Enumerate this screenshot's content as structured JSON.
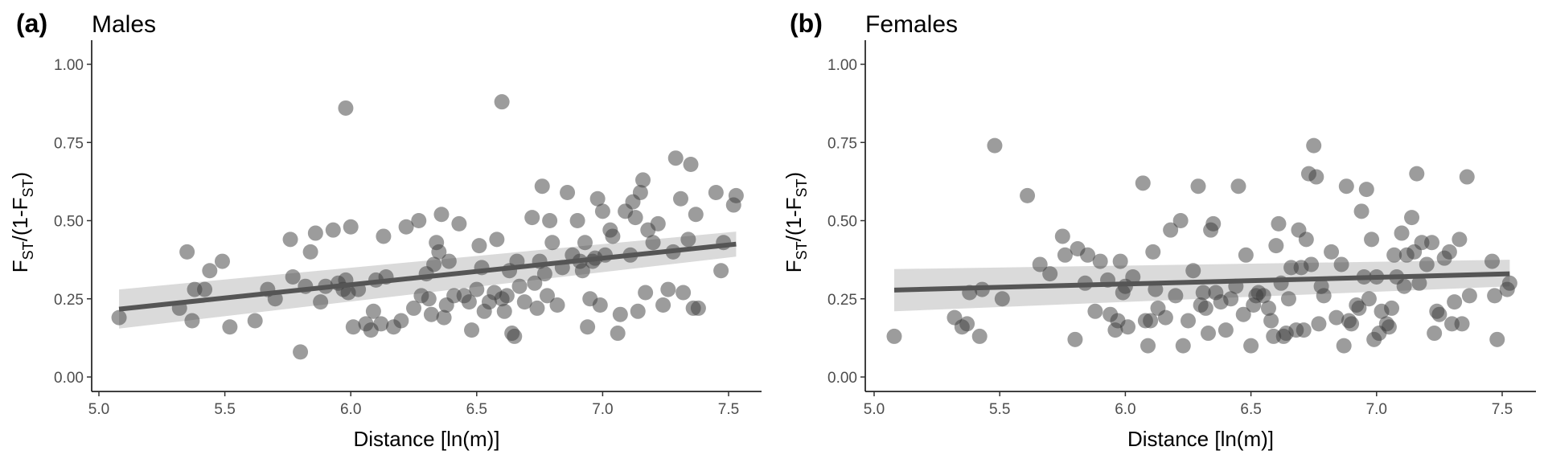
{
  "chart_data": [
    {
      "type": "scatter",
      "panel_label": "(a)",
      "title": "Males",
      "xlabel": "Distance [ln(m)]",
      "ylabel": {
        "main": "F",
        "sub": "ST",
        "mid": "/(1-F",
        "sub2": "ST",
        "end": ")"
      },
      "xlim": [
        5.0,
        7.55
      ],
      "ylim": [
        0.0,
        1.0
      ],
      "xticks": [
        "5.0",
        "5.5",
        "6.0",
        "6.5",
        "7.0",
        "7.5"
      ],
      "yticks": [
        "0.00",
        "0.25",
        "0.50",
        "0.75",
        "1.00"
      ],
      "grid": false,
      "point_color": "#3a3a3a",
      "trend_color": "#555555",
      "band_color": "#d3d3d3",
      "trend": {
        "x": [
          5.08,
          7.53
        ],
        "y": [
          0.217,
          0.425
        ],
        "ci_lower": [
          0.155,
          0.385
        ],
        "ci_upper": [
          0.28,
          0.465
        ]
      },
      "points": [
        [
          5.08,
          0.19
        ],
        [
          5.32,
          0.22
        ],
        [
          5.35,
          0.4
        ],
        [
          5.37,
          0.18
        ],
        [
          5.38,
          0.28
        ],
        [
          5.42,
          0.28
        ],
        [
          5.44,
          0.34
        ],
        [
          5.49,
          0.37
        ],
        [
          5.52,
          0.16
        ],
        [
          5.62,
          0.18
        ],
        [
          5.67,
          0.28
        ],
        [
          5.7,
          0.25
        ],
        [
          5.76,
          0.44
        ],
        [
          5.77,
          0.32
        ],
        [
          5.8,
          0.08
        ],
        [
          5.82,
          0.29
        ],
        [
          5.84,
          0.4
        ],
        [
          5.86,
          0.46
        ],
        [
          5.88,
          0.24
        ],
        [
          5.9,
          0.29
        ],
        [
          5.93,
          0.47
        ],
        [
          5.95,
          0.3
        ],
        [
          5.97,
          0.28
        ],
        [
          5.98,
          0.86
        ],
        [
          5.98,
          0.31
        ],
        [
          5.99,
          0.27
        ],
        [
          6.0,
          0.48
        ],
        [
          6.01,
          0.16
        ],
        [
          6.03,
          0.28
        ],
        [
          6.06,
          0.17
        ],
        [
          6.08,
          0.15
        ],
        [
          6.09,
          0.21
        ],
        [
          6.1,
          0.31
        ],
        [
          6.12,
          0.17
        ],
        [
          6.13,
          0.45
        ],
        [
          6.14,
          0.32
        ],
        [
          6.17,
          0.16
        ],
        [
          6.2,
          0.18
        ],
        [
          6.22,
          0.48
        ],
        [
          6.25,
          0.22
        ],
        [
          6.27,
          0.5
        ],
        [
          6.28,
          0.26
        ],
        [
          6.3,
          0.33
        ],
        [
          6.31,
          0.25
        ],
        [
          6.32,
          0.2
        ],
        [
          6.33,
          0.36
        ],
        [
          6.34,
          0.43
        ],
        [
          6.35,
          0.4
        ],
        [
          6.36,
          0.52
        ],
        [
          6.37,
          0.19
        ],
        [
          6.38,
          0.23
        ],
        [
          6.39,
          0.37
        ],
        [
          6.41,
          0.26
        ],
        [
          6.43,
          0.49
        ],
        [
          6.45,
          0.26
        ],
        [
          6.47,
          0.24
        ],
        [
          6.48,
          0.15
        ],
        [
          6.5,
          0.28
        ],
        [
          6.51,
          0.42
        ],
        [
          6.52,
          0.35
        ],
        [
          6.53,
          0.21
        ],
        [
          6.55,
          0.24
        ],
        [
          6.57,
          0.27
        ],
        [
          6.58,
          0.44
        ],
        [
          6.6,
          0.88
        ],
        [
          6.6,
          0.25
        ],
        [
          6.61,
          0.21
        ],
        [
          6.62,
          0.26
        ],
        [
          6.63,
          0.34
        ],
        [
          6.64,
          0.14
        ],
        [
          6.65,
          0.13
        ],
        [
          6.66,
          0.37
        ],
        [
          6.67,
          0.29
        ],
        [
          6.69,
          0.24
        ],
        [
          6.72,
          0.51
        ],
        [
          6.73,
          0.3
        ],
        [
          6.74,
          0.22
        ],
        [
          6.75,
          0.37
        ],
        [
          6.76,
          0.61
        ],
        [
          6.77,
          0.33
        ],
        [
          6.78,
          0.26
        ],
        [
          6.79,
          0.5
        ],
        [
          6.8,
          0.43
        ],
        [
          6.82,
          0.23
        ],
        [
          6.84,
          0.35
        ],
        [
          6.86,
          0.59
        ],
        [
          6.88,
          0.39
        ],
        [
          6.9,
          0.5
        ],
        [
          6.91,
          0.37
        ],
        [
          6.92,
          0.34
        ],
        [
          6.93,
          0.43
        ],
        [
          6.94,
          0.16
        ],
        [
          6.95,
          0.25
        ],
        [
          6.96,
          0.37
        ],
        [
          6.97,
          0.38
        ],
        [
          6.98,
          0.57
        ],
        [
          6.99,
          0.23
        ],
        [
          7.0,
          0.53
        ],
        [
          7.01,
          0.39
        ],
        [
          7.03,
          0.47
        ],
        [
          7.04,
          0.45
        ],
        [
          7.06,
          0.14
        ],
        [
          7.07,
          0.2
        ],
        [
          7.09,
          0.53
        ],
        [
          7.11,
          0.39
        ],
        [
          7.12,
          0.56
        ],
        [
          7.13,
          0.51
        ],
        [
          7.14,
          0.21
        ],
        [
          7.15,
          0.59
        ],
        [
          7.16,
          0.63
        ],
        [
          7.17,
          0.27
        ],
        [
          7.18,
          0.47
        ],
        [
          7.2,
          0.43
        ],
        [
          7.22,
          0.49
        ],
        [
          7.24,
          0.23
        ],
        [
          7.26,
          0.28
        ],
        [
          7.28,
          0.4
        ],
        [
          7.29,
          0.7
        ],
        [
          7.31,
          0.57
        ],
        [
          7.32,
          0.27
        ],
        [
          7.34,
          0.44
        ],
        [
          7.35,
          0.68
        ],
        [
          7.36,
          0.22
        ],
        [
          7.37,
          0.52
        ],
        [
          7.38,
          0.22
        ],
        [
          7.45,
          0.59
        ],
        [
          7.47,
          0.34
        ],
        [
          7.48,
          0.43
        ],
        [
          7.52,
          0.55
        ],
        [
          7.53,
          0.58
        ]
      ]
    },
    {
      "type": "scatter",
      "panel_label": "(b)",
      "title": "Females",
      "xlabel": "Distance [ln(m)]",
      "ylabel": {
        "main": "F",
        "sub": "ST",
        "mid": "/(1-F",
        "sub2": "ST",
        "end": ")"
      },
      "xlim": [
        5.0,
        7.55
      ],
      "ylim": [
        0.0,
        1.0
      ],
      "xticks": [
        "5.0",
        "5.5",
        "6.0",
        "6.5",
        "7.0",
        "7.5"
      ],
      "yticks": [
        "0.00",
        "0.25",
        "0.50",
        "0.75",
        "1.00"
      ],
      "grid": false,
      "point_color": "#3a3a3a",
      "trend_color": "#555555",
      "band_color": "#d3d3d3",
      "trend": {
        "x": [
          5.08,
          7.53
        ],
        "y": [
          0.278,
          0.33
        ],
        "ci_lower": [
          0.21,
          0.29
        ],
        "ci_upper": [
          0.345,
          0.375
        ]
      },
      "points": [
        [
          5.08,
          0.13
        ],
        [
          5.32,
          0.19
        ],
        [
          5.35,
          0.16
        ],
        [
          5.37,
          0.17
        ],
        [
          5.38,
          0.27
        ],
        [
          5.42,
          0.13
        ],
        [
          5.43,
          0.28
        ],
        [
          5.48,
          0.74
        ],
        [
          5.51,
          0.25
        ],
        [
          5.61,
          0.58
        ],
        [
          5.66,
          0.36
        ],
        [
          5.7,
          0.33
        ],
        [
          5.75,
          0.45
        ],
        [
          5.76,
          0.39
        ],
        [
          5.8,
          0.12
        ],
        [
          5.81,
          0.41
        ],
        [
          5.84,
          0.3
        ],
        [
          5.85,
          0.39
        ],
        [
          5.88,
          0.21
        ],
        [
          5.9,
          0.37
        ],
        [
          5.93,
          0.31
        ],
        [
          5.94,
          0.2
        ],
        [
          5.96,
          0.15
        ],
        [
          5.97,
          0.18
        ],
        [
          5.98,
          0.37
        ],
        [
          5.99,
          0.27
        ],
        [
          6.0,
          0.29
        ],
        [
          6.01,
          0.16
        ],
        [
          6.03,
          0.32
        ],
        [
          6.07,
          0.62
        ],
        [
          6.08,
          0.18
        ],
        [
          6.09,
          0.1
        ],
        [
          6.1,
          0.18
        ],
        [
          6.11,
          0.4
        ],
        [
          6.12,
          0.28
        ],
        [
          6.13,
          0.22
        ],
        [
          6.16,
          0.19
        ],
        [
          6.18,
          0.47
        ],
        [
          6.2,
          0.26
        ],
        [
          6.22,
          0.5
        ],
        [
          6.23,
          0.1
        ],
        [
          6.25,
          0.18
        ],
        [
          6.27,
          0.34
        ],
        [
          6.29,
          0.61
        ],
        [
          6.3,
          0.23
        ],
        [
          6.31,
          0.27
        ],
        [
          6.32,
          0.22
        ],
        [
          6.33,
          0.14
        ],
        [
          6.34,
          0.47
        ],
        [
          6.35,
          0.49
        ],
        [
          6.36,
          0.27
        ],
        [
          6.38,
          0.24
        ],
        [
          6.4,
          0.15
        ],
        [
          6.42,
          0.25
        ],
        [
          6.44,
          0.29
        ],
        [
          6.45,
          0.61
        ],
        [
          6.47,
          0.2
        ],
        [
          6.48,
          0.39
        ],
        [
          6.5,
          0.1
        ],
        [
          6.51,
          0.23
        ],
        [
          6.52,
          0.26
        ],
        [
          6.53,
          0.27
        ],
        [
          6.55,
          0.26
        ],
        [
          6.57,
          0.22
        ],
        [
          6.58,
          0.18
        ],
        [
          6.59,
          0.13
        ],
        [
          6.6,
          0.42
        ],
        [
          6.61,
          0.49
        ],
        [
          6.62,
          0.3
        ],
        [
          6.63,
          0.13
        ],
        [
          6.64,
          0.14
        ],
        [
          6.65,
          0.25
        ],
        [
          6.66,
          0.35
        ],
        [
          6.68,
          0.15
        ],
        [
          6.69,
          0.47
        ],
        [
          6.7,
          0.35
        ],
        [
          6.71,
          0.15
        ],
        [
          6.72,
          0.44
        ],
        [
          6.73,
          0.65
        ],
        [
          6.74,
          0.36
        ],
        [
          6.75,
          0.74
        ],
        [
          6.76,
          0.64
        ],
        [
          6.77,
          0.17
        ],
        [
          6.78,
          0.29
        ],
        [
          6.79,
          0.26
        ],
        [
          6.82,
          0.4
        ],
        [
          6.84,
          0.19
        ],
        [
          6.86,
          0.36
        ],
        [
          6.87,
          0.1
        ],
        [
          6.88,
          0.61
        ],
        [
          6.89,
          0.18
        ],
        [
          6.9,
          0.17
        ],
        [
          6.92,
          0.23
        ],
        [
          6.93,
          0.22
        ],
        [
          6.94,
          0.53
        ],
        [
          6.95,
          0.32
        ],
        [
          6.96,
          0.6
        ],
        [
          6.97,
          0.25
        ],
        [
          6.98,
          0.44
        ],
        [
          6.99,
          0.12
        ],
        [
          7.0,
          0.32
        ],
        [
          7.01,
          0.14
        ],
        [
          7.02,
          0.21
        ],
        [
          7.04,
          0.17
        ],
        [
          7.05,
          0.16
        ],
        [
          7.06,
          0.22
        ],
        [
          7.07,
          0.39
        ],
        [
          7.08,
          0.32
        ],
        [
          7.1,
          0.46
        ],
        [
          7.11,
          0.29
        ],
        [
          7.12,
          0.39
        ],
        [
          7.14,
          0.51
        ],
        [
          7.15,
          0.4
        ],
        [
          7.16,
          0.65
        ],
        [
          7.17,
          0.3
        ],
        [
          7.18,
          0.43
        ],
        [
          7.2,
          0.36
        ],
        [
          7.22,
          0.43
        ],
        [
          7.23,
          0.14
        ],
        [
          7.24,
          0.21
        ],
        [
          7.25,
          0.2
        ],
        [
          7.27,
          0.38
        ],
        [
          7.29,
          0.4
        ],
        [
          7.3,
          0.17
        ],
        [
          7.31,
          0.24
        ],
        [
          7.33,
          0.44
        ],
        [
          7.34,
          0.17
        ],
        [
          7.36,
          0.64
        ],
        [
          7.37,
          0.26
        ],
        [
          7.46,
          0.37
        ],
        [
          7.47,
          0.26
        ],
        [
          7.48,
          0.12
        ],
        [
          7.52,
          0.28
        ],
        [
          7.53,
          0.3
        ]
      ]
    }
  ]
}
